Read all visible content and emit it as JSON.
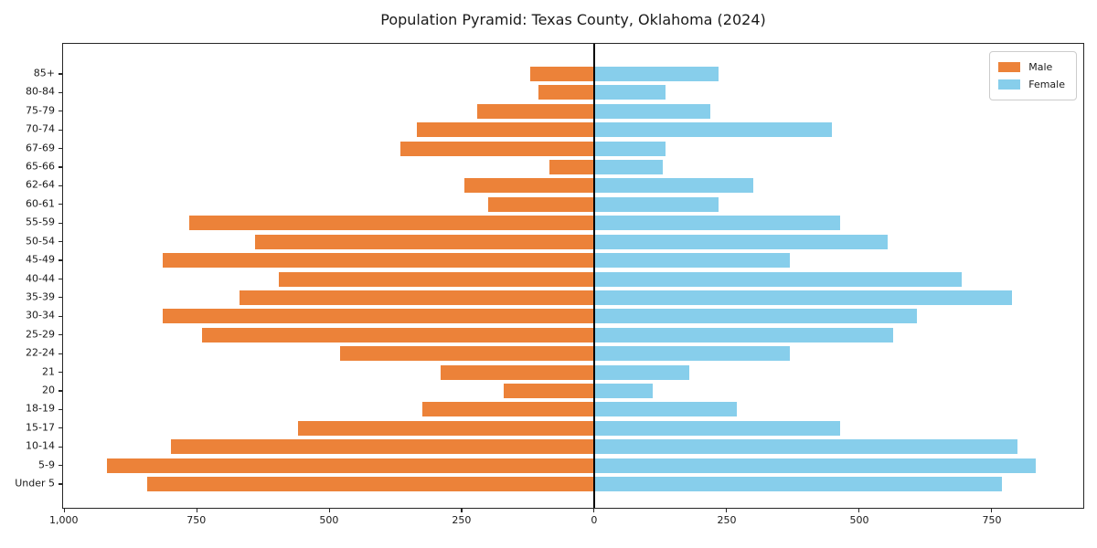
{
  "title": "Population Pyramid: Texas County, Oklahoma (2024)",
  "legend": {
    "male_label": "Male",
    "female_label": "Female",
    "position": "upper right"
  },
  "colors": {
    "male": "#ec8239",
    "female": "#87ceeb",
    "axis": "#262626",
    "zero_line": "#000000",
    "text": "#1a1a1a",
    "legend_border": "#cccccc",
    "background": "#ffffff"
  },
  "chart_data": {
    "type": "bar",
    "subtype": "population-pyramid",
    "title": "Population Pyramid: Texas County, Oklahoma (2024)",
    "xlabel": "",
    "ylabel": "",
    "grid": false,
    "legend_position": "upper right",
    "categories_top_to_bottom": [
      "85+",
      "80-84",
      "75-79",
      "70-74",
      "67-69",
      "65-66",
      "62-64",
      "60-61",
      "55-59",
      "50-54",
      "45-49",
      "40-44",
      "35-39",
      "30-34",
      "25-29",
      "22-24",
      "21",
      "20",
      "18-19",
      "15-17",
      "10-14",
      "5-9",
      "Under 5"
    ],
    "series": [
      {
        "name": "Male",
        "side": "left",
        "color": "#ec8239",
        "values": [
          120,
          105,
          220,
          335,
          365,
          85,
          245,
          200,
          765,
          640,
          815,
          595,
          670,
          815,
          740,
          480,
          290,
          170,
          325,
          560,
          800,
          920,
          845
        ]
      },
      {
        "name": "Female",
        "side": "right",
        "color": "#87ceeb",
        "values": [
          235,
          135,
          220,
          450,
          135,
          130,
          300,
          235,
          465,
          555,
          370,
          695,
          790,
          610,
          565,
          370,
          180,
          110,
          270,
          465,
          800,
          835,
          770
        ]
      }
    ],
    "xlim": [
      -1003,
      924
    ],
    "x_ticks": [
      {
        "value": -1000,
        "label": "1,000"
      },
      {
        "value": -750,
        "label": "750"
      },
      {
        "value": -500,
        "label": "500"
      },
      {
        "value": -250,
        "label": "250"
      },
      {
        "value": 0,
        "label": "0"
      },
      {
        "value": 250,
        "label": "250"
      },
      {
        "value": 500,
        "label": "500"
      },
      {
        "value": 750,
        "label": "750"
      }
    ]
  }
}
